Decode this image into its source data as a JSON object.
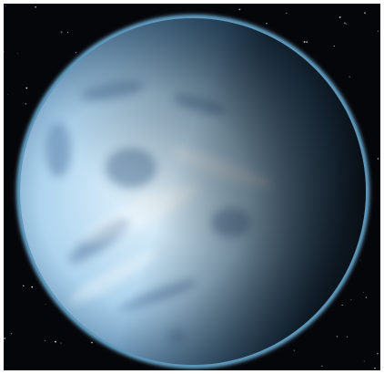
{
  "image": {
    "subject": "planet-in-space",
    "colors": {
      "frame": "#ffffff",
      "space": "#05060a",
      "planet_highlight": "#e3f3fc",
      "planet_mid": "#aed4ee",
      "planet_shadow": "#3c6a92",
      "planet_dark": "#0b1524",
      "rim_glow": "#7fd0ff",
      "surface_marks": "#5a7fa6"
    }
  }
}
